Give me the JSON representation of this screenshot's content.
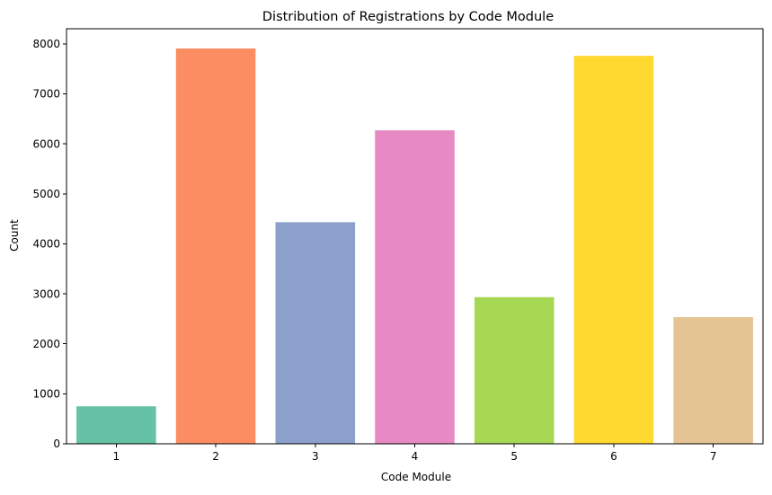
{
  "chart_data": {
    "type": "bar",
    "title": "Distribution of Registrations by Code Module",
    "xlabel": "Code Module",
    "ylabel": "Count",
    "categories": [
      "1",
      "2",
      "3",
      "4",
      "5",
      "6",
      "7"
    ],
    "values": [
      750,
      7909,
      4434,
      6272,
      2934,
      7762,
      2534
    ],
    "colors": [
      "#66c2a5",
      "#fc8d62",
      "#8da0cb",
      "#e78ac3",
      "#a6d854",
      "#ffd92f",
      "#e5c494"
    ],
    "ylim": [
      0,
      8304
    ],
    "yticks": [
      0,
      1000,
      2000,
      3000,
      4000,
      5000,
      6000,
      7000,
      8000
    ],
    "grid": false,
    "legend": "none"
  }
}
